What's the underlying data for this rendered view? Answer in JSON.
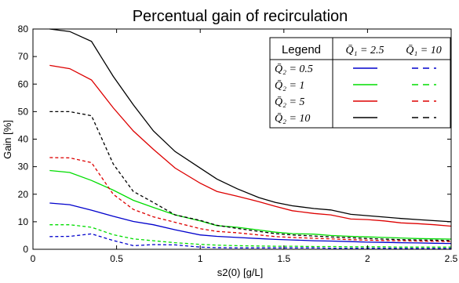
{
  "chart_data": {
    "type": "line",
    "title": "Percentual gain of recirculation",
    "xlabel": "s2(0) [g/L]",
    "ylabel": "Gain [%]",
    "xlim": [
      0,
      2.5
    ],
    "ylim": [
      0,
      80
    ],
    "xticks": [
      0,
      0.5,
      1,
      1.5,
      2,
      2.5
    ],
    "xtick_labels": [
      "0",
      "0.5",
      "1",
      "1.5",
      "2",
      "2.5"
    ],
    "yticks": [
      0,
      10,
      20,
      30,
      40,
      50,
      60,
      70,
      80
    ],
    "ytick_labels": [
      "0",
      "10",
      "20",
      "30",
      "40",
      "50",
      "60",
      "70",
      "80"
    ],
    "grid": false,
    "legend": {
      "placement": "top-right",
      "header": "Legend",
      "col_solid": "Q̄₁ = 2.5",
      "col_dashed": "Q̄₁ = 10",
      "rows": [
        "Q̄₂ = 0.5",
        "Q̄₂ = 1",
        "Q̄₂ = 5",
        "Q̄₂ = 10"
      ]
    },
    "x": [
      0.1,
      0.22,
      0.35,
      0.48,
      0.6,
      0.72,
      0.85,
      1.0,
      1.1,
      1.22,
      1.35,
      1.45,
      1.55,
      1.68,
      1.78,
      1.9,
      2.0,
      2.1,
      2.2,
      2.3,
      2.4,
      2.5
    ],
    "series": [
      {
        "color": "#0000cc",
        "style": "solid",
        "values": [
          16.8,
          16.2,
          14.2,
          12.0,
          10.1,
          8.9,
          7.1,
          5.2,
          4.7,
          4.3,
          3.9,
          3.6,
          3.4,
          3.1,
          3.0,
          2.8,
          2.6,
          2.5,
          2.4,
          2.3,
          2.2,
          2.1
        ]
      },
      {
        "color": "#0000cc",
        "style": "dashed",
        "values": [
          4.6,
          4.7,
          5.6,
          3.2,
          1.3,
          1.7,
          1.6,
          0.8,
          0.6,
          0.5,
          0.5,
          0.5,
          0.5,
          0.5,
          0.4,
          0.4,
          0.4,
          0.4,
          0.3,
          0.3,
          0.3,
          0.3
        ]
      },
      {
        "color": "#00dd00",
        "style": "solid",
        "values": [
          28.6,
          27.9,
          25.0,
          21.5,
          17.8,
          15.2,
          12.5,
          10.3,
          8.6,
          8.0,
          7.0,
          6.2,
          5.7,
          5.5,
          5.0,
          4.7,
          4.5,
          4.3,
          4.1,
          3.9,
          3.8,
          3.7
        ]
      },
      {
        "color": "#00dd00",
        "style": "dashed",
        "values": [
          8.9,
          8.9,
          8.0,
          5.3,
          3.8,
          3.1,
          2.4,
          1.8,
          1.5,
          1.3,
          1.2,
          1.1,
          1.1,
          1.0,
          1.0,
          0.9,
          0.9,
          0.9,
          0.8,
          0.8,
          0.8,
          0.8
        ]
      },
      {
        "color": "#dd0000",
        "style": "solid",
        "values": [
          66.8,
          65.6,
          61.5,
          51.4,
          43.0,
          36.3,
          29.5,
          24.0,
          21.0,
          19.3,
          17.3,
          15.6,
          14.0,
          13.0,
          12.5,
          11.0,
          10.8,
          10.3,
          9.6,
          9.3,
          8.9,
          8.4
        ]
      },
      {
        "color": "#dd0000",
        "style": "dashed",
        "values": [
          33.3,
          33.2,
          31.5,
          20.0,
          14.5,
          11.8,
          9.8,
          7.5,
          6.5,
          6.0,
          5.2,
          4.6,
          4.3,
          4.0,
          3.8,
          3.5,
          3.3,
          3.2,
          3.1,
          3.0,
          2.9,
          2.8
        ]
      },
      {
        "color": "#000000",
        "style": "solid",
        "values": [
          80.0,
          79.1,
          75.5,
          62.8,
          52.5,
          43.0,
          35.5,
          29.5,
          25.5,
          22.0,
          18.8,
          17.0,
          15.8,
          14.8,
          14.3,
          12.7,
          12.2,
          11.7,
          11.2,
          10.8,
          10.4,
          10.0
        ]
      },
      {
        "color": "#000000",
        "style": "dashed",
        "values": [
          50.0,
          50.0,
          48.5,
          31.0,
          21.0,
          17.0,
          12.5,
          10.5,
          8.7,
          7.6,
          6.5,
          5.7,
          5.2,
          4.8,
          4.5,
          4.2,
          3.9,
          3.7,
          3.5,
          3.4,
          3.3,
          3.2
        ]
      }
    ]
  }
}
